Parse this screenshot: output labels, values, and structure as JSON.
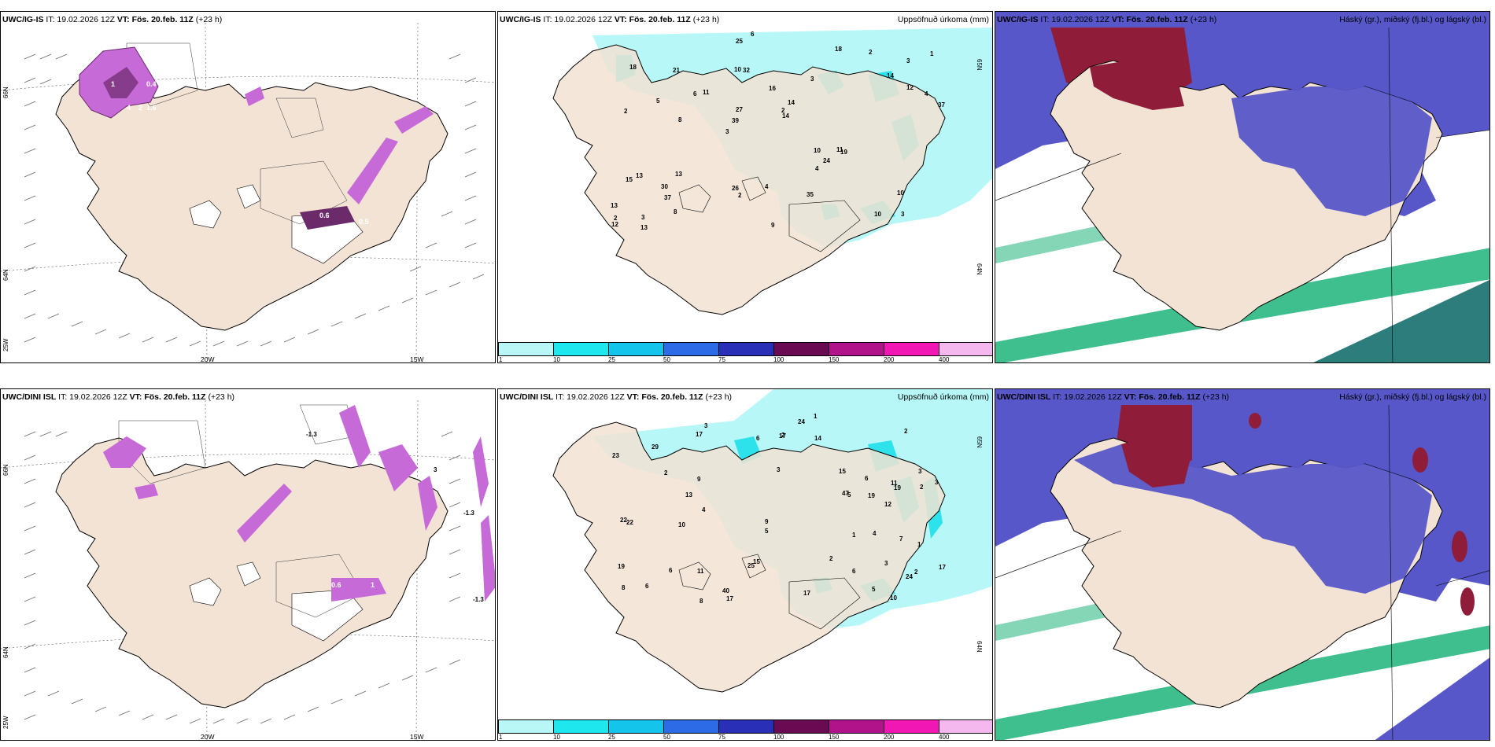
{
  "colors": {
    "land": "#f2e3d4",
    "sea": "#ffffff",
    "precip_light": "#b7f7f7",
    "precip_mid": "#2ee2ec",
    "ice_purple": "#c66ad8",
    "ice_dark": "#6b2a6a",
    "cloud_high": "#8f1d3a",
    "cloud_mid": "#5757c9",
    "cloud_low": "#1fb47a"
  },
  "panels": {
    "r1c1": {
      "model": "UWC/IG-IS",
      "it": "IT: 19.02.2026 12Z",
      "vt_label": "VT:",
      "vt": "Fös. 20.feb. 11Z",
      "lead": "(+23 h)",
      "lat_66": "66N",
      "lat_64": "64N",
      "lon_25": "25W",
      "lon_20": "20W",
      "lon_15": "15W",
      "values": [
        "0.4",
        "0.6",
        "0.5",
        "4",
        "2",
        "1.6",
        "1"
      ]
    },
    "r1c2": {
      "model": "UWC/IG-IS",
      "it": "IT: 19.02.2026 12Z",
      "vt_label": "VT:",
      "vt": "Fös. 20.feb. 11Z",
      "lead": "(+23 h)",
      "right": "Uppsöfnuð úrkoma (mm)",
      "lat_65": "65N",
      "lat_64": "64N",
      "values": [
        "3",
        "2",
        "3",
        "3",
        "3",
        "3",
        "10",
        "16",
        "13",
        "11",
        "13",
        "37",
        "32",
        "14",
        "19",
        "18",
        "25",
        "37",
        "10",
        "12",
        "39",
        "26",
        "27",
        "21",
        "18",
        "13",
        "10",
        "10",
        "11",
        "9",
        "6",
        "5",
        "4",
        "8",
        "4",
        "2",
        "2",
        "2",
        "14",
        "15",
        "14",
        "1",
        "24",
        "35",
        "30",
        "13",
        "12",
        "4",
        "2",
        "6",
        "8"
      ]
    },
    "r1c3": {
      "model": "UWC/IG-IS",
      "it": "IT: 19.02.2026 12Z",
      "vt_label": "VT:",
      "vt": "Fös. 20.feb. 11Z",
      "lead": "(+23 h)",
      "right": "Háský (gr.), miðský (fj.bl.) og lágský (bl.)"
    },
    "r2c1": {
      "model": "UWC/DINI ISL",
      "it": "IT: 19.02.2026 12Z",
      "vt_label": "VT:",
      "vt": "Fös. 20.feb. 11Z",
      "lead": "(+23 h)",
      "lat_66": "66N",
      "lat_64": "64N",
      "lon_25": "25W",
      "lon_20": "20W",
      "lon_15": "15W",
      "values": [
        "-1.3",
        "-1.3",
        "-1.3",
        "3",
        "0.6",
        "1"
      ]
    },
    "r2c2": {
      "model": "UWC/DINI ISL",
      "it": "IT: 19.02.2026 12Z",
      "vt_label": "VT:",
      "vt": "Fös. 20.feb. 11Z",
      "lead": "(+23 h)",
      "right": "Uppsöfnuð úrkoma (mm)",
      "lat_65": "65N",
      "lat_64": "64N",
      "values": [
        "3",
        "3",
        "2",
        "3",
        "8",
        "3",
        "11",
        "11",
        "2",
        "2",
        "2",
        "23",
        "12",
        "17",
        "19",
        "29",
        "24",
        "17",
        "15",
        "19",
        "22",
        "22",
        "17",
        "47",
        "40",
        "25",
        "24",
        "14",
        "15",
        "17",
        "10",
        "6",
        "8",
        "9",
        "7",
        "5",
        "5",
        "6",
        "10",
        "4",
        "4",
        "19",
        "17",
        "13",
        "1",
        "1",
        "6",
        "1",
        "9",
        "6",
        "6",
        "5",
        "2",
        "3",
        "2"
      ]
    },
    "r2c3": {
      "model": "UWC/DINI ISL",
      "it": "IT: 19.02.2026 12Z",
      "vt_label": "VT:",
      "vt": "Fös. 20.feb. 11Z",
      "lead": "(+23 h)",
      "right": "Háský (gr.), miðský (fj.bl.) og lágský (bl.)"
    }
  },
  "colorbar": {
    "labels": [
      "1",
      "10",
      "25",
      "50",
      "75",
      "100",
      "150",
      "200",
      "400"
    ],
    "colors": [
      "#b9f7f7",
      "#1fe7ee",
      "#14c4ea",
      "#2d6be6",
      "#2a2fb8",
      "#6a0a52",
      "#b0138a",
      "#f117b5",
      "#f5b8ee"
    ]
  }
}
